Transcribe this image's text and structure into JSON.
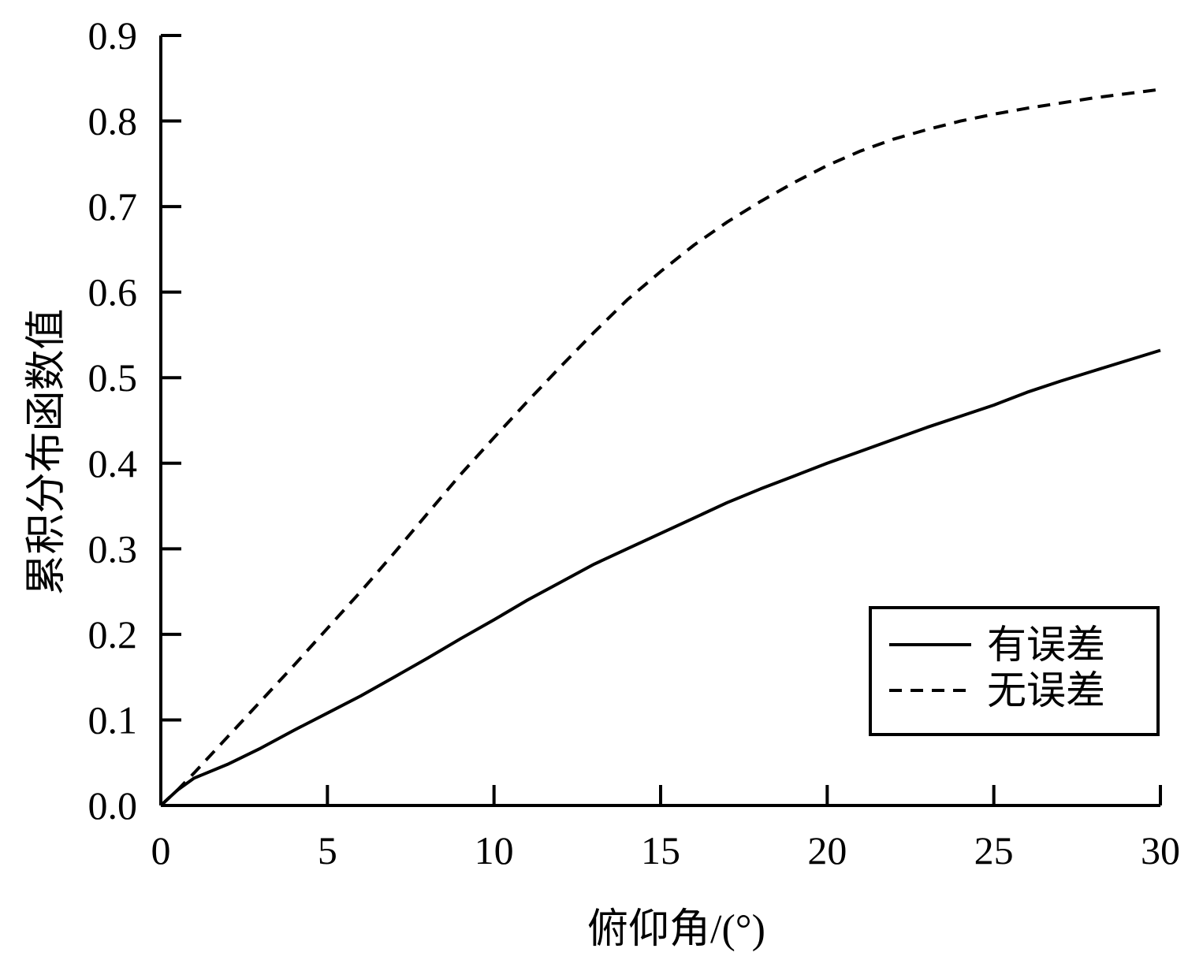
{
  "chart_data": {
    "type": "line",
    "xlabel": "俯仰角/(°)",
    "ylabel": "累积分布函数值",
    "xlim": [
      0,
      30
    ],
    "ylim": [
      0,
      0.9
    ],
    "x_ticks": [
      "0",
      "5",
      "10",
      "15",
      "20",
      "25",
      "30"
    ],
    "y_ticks": [
      "0.0",
      "0.1",
      "0.2",
      "0.3",
      "0.4",
      "0.5",
      "0.6",
      "0.7",
      "0.8",
      "0.9"
    ],
    "grid": false,
    "legend_position": "bottom-right",
    "x": [
      0,
      0.5,
      1,
      2,
      3,
      4,
      5,
      6,
      7,
      8,
      9,
      10,
      11,
      12,
      13,
      14,
      15,
      16,
      17,
      18,
      19,
      20,
      21,
      22,
      23,
      24,
      25,
      26,
      27,
      28,
      29,
      30
    ],
    "series": [
      {
        "name": "有误差",
        "style": "solid",
        "values": [
          0.0,
          0.018,
          0.032,
          0.048,
          0.067,
          0.088,
          0.108,
          0.128,
          0.15,
          0.172,
          0.195,
          0.217,
          0.24,
          0.261,
          0.282,
          0.3,
          0.318,
          0.336,
          0.354,
          0.37,
          0.385,
          0.4,
          0.414,
          0.428,
          0.442,
          0.455,
          0.468,
          0.483,
          0.496,
          0.508,
          0.52,
          0.532
        ]
      },
      {
        "name": "无误差",
        "style": "dashed",
        "values": [
          0.0,
          0.018,
          0.038,
          0.08,
          0.122,
          0.164,
          0.207,
          0.25,
          0.295,
          0.341,
          0.387,
          0.43,
          0.472,
          0.513,
          0.553,
          0.591,
          0.624,
          0.655,
          0.682,
          0.706,
          0.728,
          0.748,
          0.765,
          0.779,
          0.79,
          0.8,
          0.808,
          0.815,
          0.821,
          0.827,
          0.832,
          0.837
        ]
      }
    ]
  }
}
